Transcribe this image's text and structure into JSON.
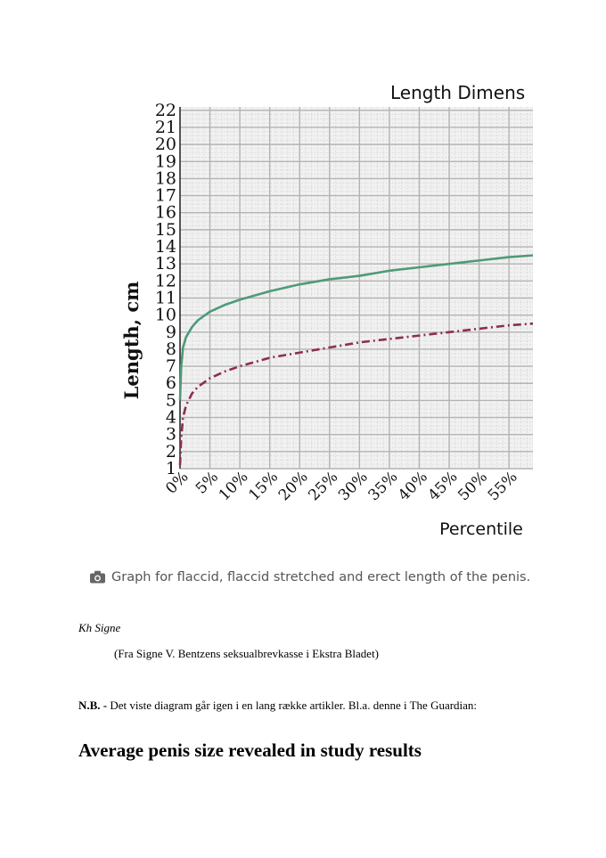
{
  "chart_data": {
    "type": "line",
    "title": "Length Dimens",
    "xlabel": "Percentile",
    "ylabel": "Length, cm",
    "x_ticks": [
      "0%",
      "5%",
      "10%",
      "15%",
      "20%",
      "25%",
      "30%",
      "35%",
      "40%",
      "45%",
      "50%",
      "55%"
    ],
    "y_ticks": [
      "1",
      "2",
      "3",
      "4",
      "5",
      "6",
      "7",
      "8",
      "9",
      "10",
      "11",
      "12",
      "13",
      "14",
      "15",
      "16",
      "17",
      "18",
      "19",
      "20",
      "21",
      "22"
    ],
    "xlim": [
      0,
      59
    ],
    "ylim": [
      1,
      22.2
    ],
    "grid": true,
    "series": [
      {
        "color": "#4f9a78",
        "style": "solid",
        "x": [
          0,
          0.2,
          0.5,
          1,
          2,
          3,
          5,
          7.5,
          10,
          15,
          20,
          25,
          30,
          35,
          40,
          45,
          50,
          55,
          59
        ],
        "y": [
          5.0,
          7.0,
          8.1,
          8.7,
          9.3,
          9.7,
          10.2,
          10.6,
          10.9,
          11.4,
          11.8,
          12.1,
          12.3,
          12.6,
          12.8,
          13.0,
          13.2,
          13.4,
          13.5
        ]
      },
      {
        "color": "#8c2e54",
        "style": "dashdot",
        "x": [
          0,
          0.2,
          0.5,
          1,
          2,
          3,
          5,
          7.5,
          10,
          15,
          20,
          25,
          30,
          35,
          40,
          45,
          50,
          55,
          59
        ],
        "y": [
          1.2,
          2.8,
          4.0,
          4.7,
          5.4,
          5.8,
          6.3,
          6.7,
          7.0,
          7.5,
          7.8,
          8.1,
          8.4,
          8.6,
          8.8,
          9.0,
          9.2,
          9.4,
          9.5
        ]
      }
    ]
  },
  "colors": {
    "grid_major": "#b3b3b3",
    "grid_minor": "#d0d0d0",
    "plot_background": "#f1f1f1",
    "text": "#111111"
  },
  "caption": {
    "icon": "camera-icon",
    "text": "Graph for flaccid, flaccid stretched and erect length of the penis."
  },
  "signoff": "Kh Signe",
  "source": "(Fra Signe V. Bentzens seksualbrevkasse i Ekstra Bladet)",
  "nb": {
    "label": "N.B. -",
    "text": " Det viste diagram går igen i en lang række artikler. Bl.a. denne i The Guardian:"
  },
  "headline": "Average penis size revealed in study results"
}
